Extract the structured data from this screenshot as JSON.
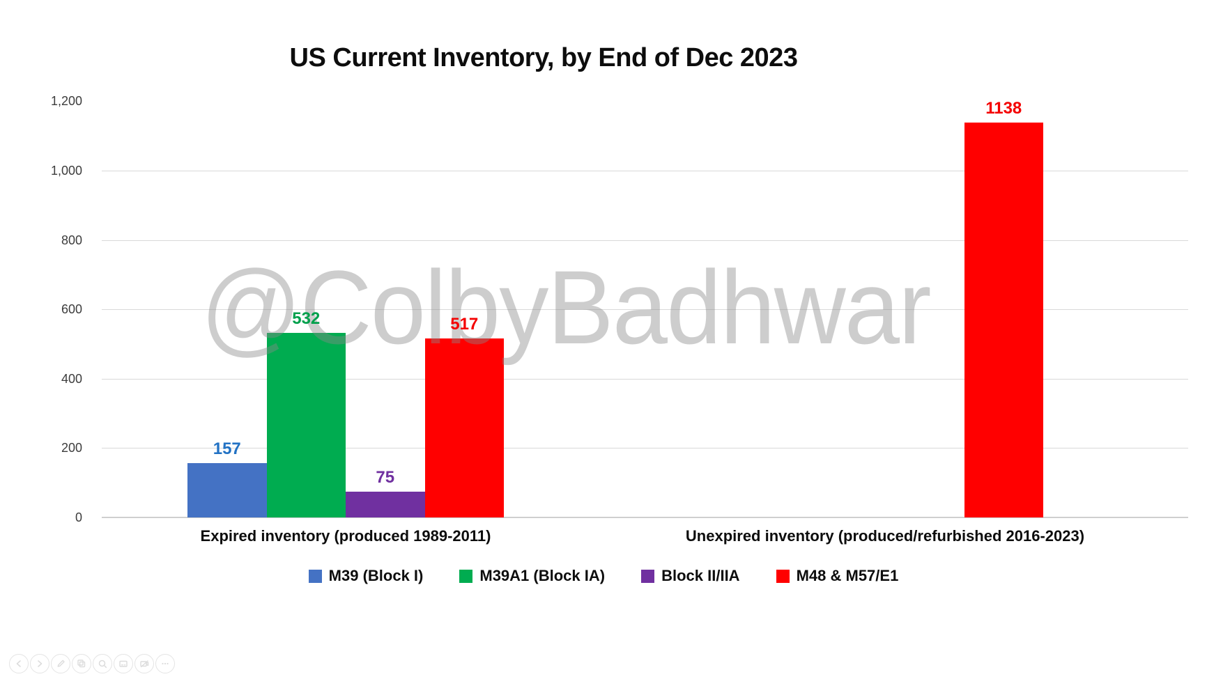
{
  "title": "US Current Inventory, by End of Dec 2023",
  "watermark": "@ColbyBadhwar",
  "chart_data": {
    "type": "bar",
    "title": "US Current Inventory, by End of Dec 2023",
    "categories": [
      "Expired inventory (produced 1989-2011)",
      "Unexpired inventory (produced/refurbished 2016-2023)"
    ],
    "series": [
      {
        "name": "M39 (Block I)",
        "color": "#4472C4",
        "label_color": "#2272C4",
        "values": [
          157,
          null
        ]
      },
      {
        "name": "M39A1 (Block IA)",
        "color": "#00AC50",
        "label_color": "#00A04C",
        "values": [
          532,
          null
        ]
      },
      {
        "name": "Block II/IIA",
        "color": "#7030A0",
        "label_color": "#7030A0",
        "values": [
          75,
          null
        ]
      },
      {
        "name": "M48 & M57/E1",
        "color": "#FF0000",
        "label_color": "#F40000",
        "values": [
          517,
          1138
        ]
      }
    ],
    "ylim": [
      0,
      1200
    ],
    "yticks": [
      {
        "value": 0,
        "label": "0"
      },
      {
        "value": 200,
        "label": "200"
      },
      {
        "value": 400,
        "label": "400"
      },
      {
        "value": 600,
        "label": "600"
      },
      {
        "value": 800,
        "label": "800"
      },
      {
        "value": 1000,
        "label": "1,000"
      },
      {
        "value": 1200,
        "label": "1,200"
      }
    ],
    "grid": true,
    "legend_position": "bottom",
    "bar_value_labels": true
  },
  "toolbar": {
    "buttons": [
      "previous",
      "next",
      "edit",
      "copy",
      "zoom",
      "caption-card",
      "video-off",
      "more"
    ]
  }
}
